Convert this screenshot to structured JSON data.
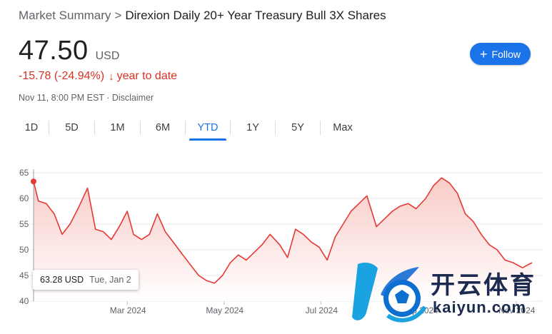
{
  "breadcrumb": {
    "root": "Market Summary",
    "separator": ">",
    "current": "Direxion Daily 20+ Year Treasury Bull 3X Shares"
  },
  "quote": {
    "price": "47.50",
    "currency": "USD",
    "change": "-15.78 (-24.94%)",
    "change_arrow": "↓",
    "change_period": "year to date",
    "timestamp": "Nov 11, 8:00 PM EST",
    "meta_separator": "·",
    "disclaimer": "Disclaimer"
  },
  "follow_button": {
    "icon": "plus-icon",
    "label": "Follow"
  },
  "ranges": [
    "1D",
    "5D",
    "1M",
    "6M",
    "YTD",
    "1Y",
    "5Y",
    "Max"
  ],
  "active_range": "YTD",
  "tooltip": {
    "value": "63.28 USD",
    "date": "Tue, Jan 2"
  },
  "watermark": {
    "chinese": "开云体育",
    "url": "kaiyun.com"
  },
  "colors": {
    "line": "#e53935",
    "fill": "#fde7e6",
    "accent": "#1a73e8",
    "negative": "#d93025"
  },
  "chart_data": {
    "type": "area",
    "x_tick_labels": [
      "Mar 2024",
      "May 2024",
      "Jul 2024",
      "Sep 2024",
      "Nov 2024"
    ],
    "y_tick_labels": [
      "65",
      "60",
      "55",
      "50",
      "45",
      "40"
    ],
    "ylim": [
      40,
      65
    ],
    "grid": true,
    "series": [
      {
        "x": [
          "2024-01-02",
          "2024-01-05",
          "2024-01-10",
          "2024-01-15",
          "2024-01-20",
          "2024-01-25",
          "2024-01-30",
          "2024-02-05",
          "2024-02-10",
          "2024-02-15",
          "2024-02-20",
          "2024-02-25",
          "2024-03-01",
          "2024-03-05",
          "2024-03-10",
          "2024-03-15",
          "2024-03-20",
          "2024-03-25",
          "2024-03-30",
          "2024-04-05",
          "2024-04-10",
          "2024-04-15",
          "2024-04-20",
          "2024-04-25",
          "2024-04-30",
          "2024-05-05",
          "2024-05-10",
          "2024-05-15",
          "2024-05-20",
          "2024-05-25",
          "2024-05-30",
          "2024-06-05",
          "2024-06-10",
          "2024-06-15",
          "2024-06-20",
          "2024-06-25",
          "2024-06-30",
          "2024-07-05",
          "2024-07-10",
          "2024-07-15",
          "2024-07-20",
          "2024-07-25",
          "2024-07-30",
          "2024-08-05",
          "2024-08-10",
          "2024-08-15",
          "2024-08-20",
          "2024-08-25",
          "2024-08-30",
          "2024-09-05",
          "2024-09-10",
          "2024-09-15",
          "2024-09-20",
          "2024-09-25",
          "2024-09-30",
          "2024-10-05",
          "2024-10-10",
          "2024-10-15",
          "2024-10-20",
          "2024-10-25",
          "2024-10-30",
          "2024-11-05",
          "2024-11-11"
        ],
        "values": [
          63.3,
          59.5,
          59.0,
          57.0,
          53.0,
          55.0,
          58.0,
          62.0,
          54.0,
          53.5,
          52.0,
          54.5,
          57.5,
          53.0,
          52.0,
          53.0,
          57.0,
          53.5,
          51.5,
          49.0,
          47.0,
          45.0,
          44.0,
          43.5,
          45.0,
          47.5,
          49.0,
          48.0,
          49.5,
          51.0,
          53.0,
          51.0,
          48.5,
          54.0,
          53.0,
          51.5,
          50.5,
          48.0,
          52.5,
          55.0,
          57.5,
          59.0,
          60.5,
          54.5,
          56.0,
          57.5,
          58.5,
          59.0,
          58.0,
          60.0,
          62.5,
          64.0,
          63.0,
          61.0,
          57.0,
          55.5,
          53.0,
          51.0,
          50.0,
          48.0,
          47.5,
          46.5,
          47.5
        ]
      }
    ]
  }
}
